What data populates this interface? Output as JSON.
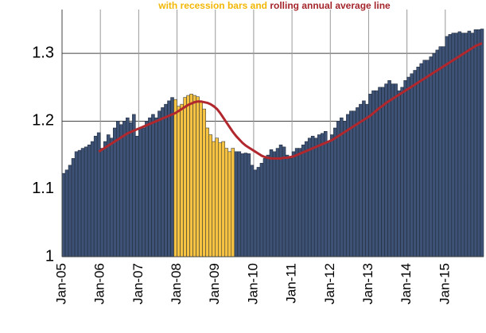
{
  "chart_data": {
    "type": "bar",
    "subtitle": [
      "with recession bars and",
      "rolling annual average line"
    ],
    "subtitle_colors": [
      "#f2b705",
      "#a4262c"
    ],
    "categories": [
      "Jan-05",
      null,
      null,
      null,
      null,
      null,
      null,
      null,
      null,
      null,
      null,
      null,
      "Jan-06",
      null,
      null,
      null,
      null,
      null,
      null,
      null,
      null,
      null,
      null,
      null,
      "Jan-07",
      null,
      null,
      null,
      null,
      null,
      null,
      null,
      null,
      null,
      null,
      null,
      "Jan-08",
      null,
      null,
      null,
      null,
      null,
      null,
      null,
      null,
      null,
      null,
      null,
      "Jan-09",
      null,
      null,
      null,
      null,
      null,
      null,
      null,
      null,
      null,
      null,
      null,
      "Jan-10",
      null,
      null,
      null,
      null,
      null,
      null,
      null,
      null,
      null,
      null,
      null,
      "Jan-11",
      null,
      null,
      null,
      null,
      null,
      null,
      null,
      null,
      null,
      null,
      null,
      "Jan-12",
      null,
      null,
      null,
      null,
      null,
      null,
      null,
      null,
      null,
      null,
      null,
      "Jan-13",
      null,
      null,
      null,
      null,
      null,
      null,
      null,
      null,
      null,
      null,
      null,
      "Jan-14",
      null,
      null,
      null,
      null,
      null,
      null,
      null,
      null,
      null,
      null,
      null,
      "Jan-15",
      null,
      null,
      null,
      null,
      null,
      null,
      null,
      null,
      null,
      null,
      null
    ],
    "series": [
      {
        "type": "bar",
        "color": "#3d5275",
        "values": [
          1.123,
          1.128,
          1.135,
          1.145,
          1.155,
          1.157,
          1.16,
          1.162,
          1.165,
          1.17,
          1.178,
          1.183,
          1.16,
          1.17,
          1.18,
          1.175,
          1.19,
          1.2,
          1.195,
          1.2,
          1.205,
          1.198,
          1.21,
          1.178,
          1.19,
          1.19,
          1.2,
          1.205,
          1.21,
          1.205,
          1.215,
          1.22,
          1.225,
          1.23,
          1.235,
          null,
          null,
          null,
          null,
          null,
          null,
          null,
          null,
          null,
          null,
          null,
          null,
          null,
          null,
          null,
          null,
          null,
          null,
          null,
          1.155,
          1.155,
          1.152,
          1.153,
          1.152,
          1.135,
          1.128,
          1.132,
          1.138,
          1.145,
          1.15,
          1.158,
          1.155,
          1.16,
          1.165,
          1.162,
          1.15,
          1.145,
          1.155,
          1.16,
          1.16,
          1.165,
          1.17,
          1.175,
          1.178,
          1.175,
          1.18,
          1.182,
          1.185,
          1.17,
          1.18,
          1.19,
          1.2,
          1.205,
          1.2,
          1.21,
          1.215,
          1.215,
          1.22,
          1.225,
          1.23,
          1.225,
          1.24,
          1.245,
          1.245,
          1.25,
          1.25,
          1.255,
          1.26,
          1.255,
          1.255,
          1.245,
          1.25,
          1.26,
          1.265,
          1.27,
          1.275,
          1.28,
          1.285,
          1.29,
          1.29,
          1.295,
          1.3,
          1.305,
          1.31,
          1.31,
          1.325,
          1.328,
          1.33,
          1.33,
          1.332,
          1.33,
          1.33,
          1.333,
          1.33,
          1.335,
          1.335,
          1.336
        ]
      },
      {
        "type": "bar",
        "color": "#f5c242",
        "values": [
          null,
          null,
          null,
          null,
          null,
          null,
          null,
          null,
          null,
          null,
          null,
          null,
          null,
          null,
          null,
          null,
          null,
          null,
          null,
          null,
          null,
          null,
          null,
          null,
          null,
          null,
          null,
          null,
          null,
          null,
          null,
          null,
          null,
          null,
          null,
          1.232,
          1.222,
          1.225,
          1.235,
          1.238,
          1.24,
          1.238,
          1.236,
          1.228,
          1.218,
          1.19,
          1.18,
          1.17,
          1.175,
          1.168,
          1.17,
          1.16,
          1.155,
          1.16,
          null,
          null,
          null,
          null,
          null,
          null,
          null,
          null,
          null,
          null,
          null,
          null,
          null,
          null,
          null,
          null,
          null,
          null,
          null,
          null,
          null,
          null,
          null,
          null,
          null,
          null,
          null,
          null,
          null,
          null,
          null,
          null,
          null,
          null,
          null,
          null,
          null,
          null,
          null,
          null,
          null,
          null,
          null,
          null,
          null,
          null,
          null,
          null,
          null,
          null,
          null,
          null,
          null,
          null,
          null,
          null,
          null,
          null,
          null,
          null,
          null,
          null,
          null,
          null,
          null,
          null,
          null,
          null,
          null,
          null,
          null,
          null,
          null,
          null,
          null,
          null,
          null,
          null
        ]
      },
      {
        "type": "line",
        "color": "#b0282e",
        "values": [
          null,
          null,
          null,
          null,
          null,
          null,
          null,
          null,
          null,
          null,
          null,
          1.155,
          1.158,
          1.161,
          1.164,
          1.167,
          1.17,
          1.173,
          1.176,
          1.179,
          1.182,
          1.184,
          1.186,
          1.188,
          1.19,
          1.192,
          1.194,
          1.196,
          1.198,
          1.2,
          1.202,
          1.204,
          1.206,
          1.208,
          1.21,
          1.212,
          1.215,
          1.218,
          1.221,
          1.224,
          1.226,
          1.228,
          1.229,
          1.229,
          1.228,
          1.227,
          1.225,
          1.222,
          1.218,
          1.212,
          1.205,
          1.198,
          1.191,
          1.184,
          1.178,
          1.173,
          1.168,
          1.164,
          1.161,
          1.158,
          1.155,
          1.152,
          1.149,
          1.147,
          1.146,
          1.145,
          1.145,
          1.145,
          1.145,
          1.146,
          1.146,
          1.147,
          1.148,
          1.15,
          1.152,
          1.154,
          1.156,
          1.158,
          1.16,
          1.162,
          1.164,
          1.166,
          1.168,
          1.17,
          1.172,
          1.175,
          1.178,
          1.181,
          1.184,
          1.187,
          1.19,
          1.193,
          1.196,
          1.199,
          1.202,
          1.205,
          1.208,
          1.212,
          1.216,
          1.22,
          1.223,
          1.227,
          1.23,
          1.233,
          1.236,
          1.239,
          1.242,
          1.245,
          1.248,
          1.251,
          1.254,
          1.257,
          1.26,
          1.263,
          1.266,
          1.269,
          1.272,
          1.275,
          1.278,
          1.281,
          1.284,
          1.287,
          1.29,
          1.293,
          1.296,
          1.299,
          1.302,
          1.305,
          1.308,
          1.311,
          1.313,
          1.315
        ]
      }
    ],
    "ylim": [
      1,
      1.36
    ],
    "yticks": [
      1,
      1.1,
      1.2,
      1.3
    ],
    "grid": true
  }
}
